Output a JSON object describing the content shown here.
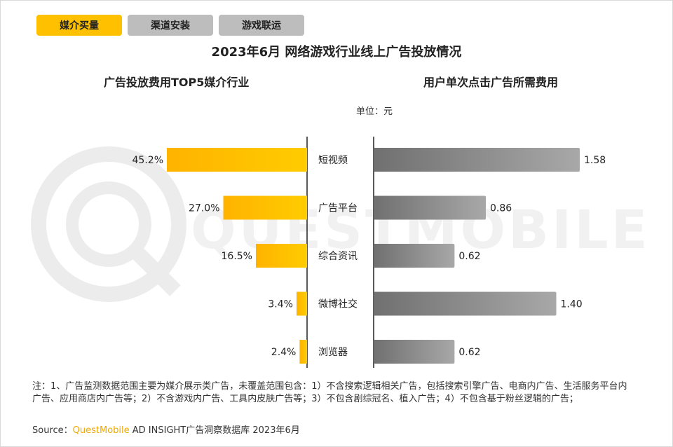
{
  "tabs": [
    {
      "label": "媒介买量",
      "active": true
    },
    {
      "label": "渠道安装",
      "active": false
    },
    {
      "label": "游戏联运",
      "active": false
    }
  ],
  "title": "2023年6月 网络游戏行业线上广告投放情况",
  "left_subtitle": "广告投放费用TOP5媒介行业",
  "right_subtitle": "用户单次点击广告所需费用",
  "unit": "单位：元",
  "watermark": "QUESTMOBILE",
  "note": "注：1、广告监测数据范围主要为媒介展示类广告，未覆盖范围包含：1）不含搜索逻辑相关广告，包括搜索引擎广告、电商内广告、生活服务平台内广告、应用商店内广告等；2）不含游戏内广告、工具内皮肤广告等；3）不包含剧综冠名、植入广告；4）不包含基于粉丝逻辑的广告；",
  "source": {
    "prefix": "Source：",
    "brand": "QuestMobile",
    "suffix": " AD INSIGHT广告洞察数据库 2023年6月"
  },
  "colors": {
    "accent": "#ffc000",
    "left_bar_start": "#ffc000",
    "left_bar_end": "#ffb300",
    "right_bar_start": "#6e6e6e",
    "right_bar_end": "#a8a8a8",
    "tab_inactive": "#bdbdbd"
  },
  "chart_data": {
    "type": "bar",
    "categories": [
      "短视频",
      "广告平台",
      "综合资讯",
      "微博社交",
      "浏览器"
    ],
    "series": [
      {
        "name": "广告投放费用TOP5媒介行业",
        "values": [
          45.2,
          27.0,
          16.5,
          3.4,
          2.4
        ],
        "unit": "%",
        "labels": [
          "45.2%",
          "27.0%",
          "16.5%",
          "3.4%",
          "2.4%"
        ]
      },
      {
        "name": "用户单次点击广告所需费用",
        "values": [
          1.58,
          0.86,
          0.62,
          1.4,
          0.62
        ],
        "unit": "元",
        "labels": [
          "1.58",
          "0.86",
          "0.62",
          "1.40",
          "0.62"
        ]
      }
    ],
    "orientation": "horizontal",
    "layout": "butterfly"
  }
}
